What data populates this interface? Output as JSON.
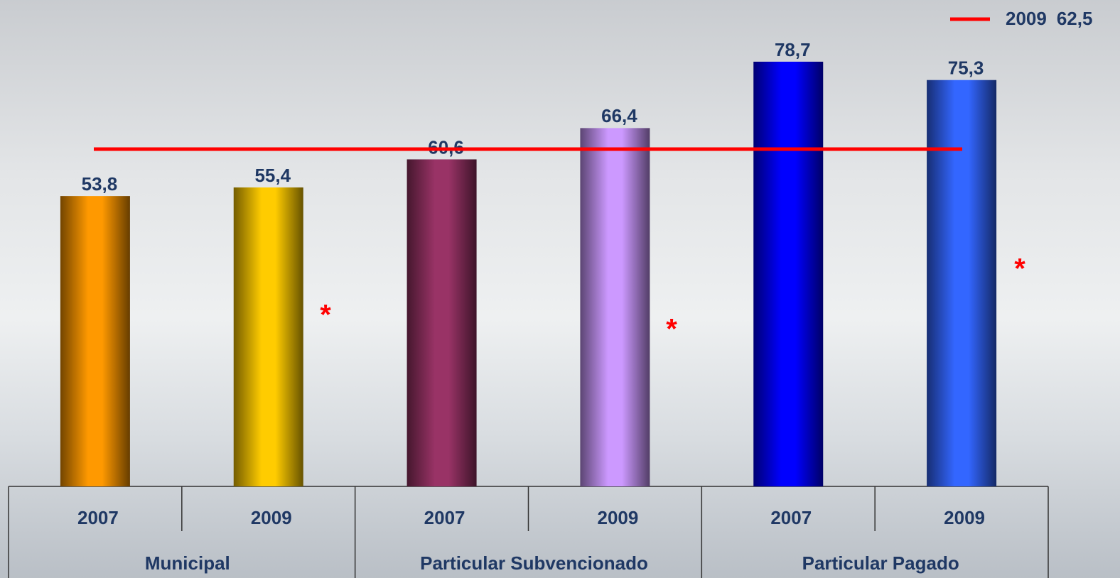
{
  "chart_data": {
    "type": "bar",
    "categories": [
      "2007",
      "2009",
      "2007",
      "2009",
      "2007",
      "2009"
    ],
    "groups": [
      "Municipal",
      "Particular Subvencionado",
      "Particular Pagado"
    ],
    "values": [
      53.8,
      55.4,
      60.6,
      66.4,
      78.7,
      75.3
    ],
    "value_labels": [
      "53,8",
      "55,4",
      "60,6",
      "66,4",
      "78,7",
      "75,3"
    ],
    "colors": [
      "#ff9900",
      "#ffcc00",
      "#993366",
      "#cc99ff",
      "#0000ff",
      "#3366ff"
    ],
    "ylim": [
      0,
      90
    ],
    "reference_line": {
      "label": "2009",
      "value": 62.5,
      "value_label": "62,5",
      "color": "#ff0000"
    },
    "legend": "top-right",
    "annotations": [
      "*",
      "*",
      "*"
    ]
  }
}
